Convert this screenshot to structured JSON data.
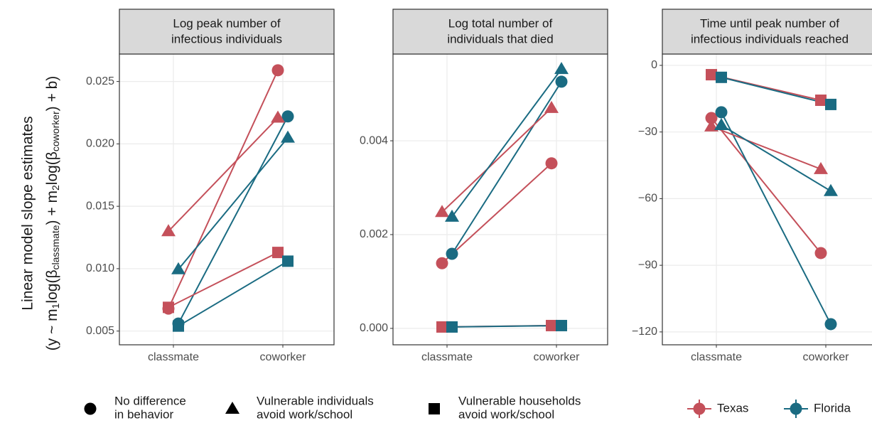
{
  "chart_data": [
    {
      "type": "line",
      "title": [
        "Log peak number of",
        "infectious individuals"
      ],
      "categories": [
        "classmate",
        "coworker"
      ],
      "ylim": [
        0.0039,
        0.0272
      ],
      "yticks": [
        0.005,
        {
          "value": 0.01,
          "label": "0.010"
        },
        0.015,
        {
          "value": 0.02,
          "label": "0.020"
        },
        0.025
      ],
      "grid": true,
      "series": [
        {
          "name": "Texas",
          "shape": "circle",
          "color": "#c4505a",
          "values": [
            0.0068,
            0.0259
          ]
        },
        {
          "name": "Florida",
          "shape": "circle",
          "color": "#1a6b82",
          "values": [
            0.0056,
            0.0222
          ]
        },
        {
          "name": "Texas",
          "shape": "triangle",
          "color": "#c4505a",
          "values": [
            0.013,
            0.0221
          ]
        },
        {
          "name": "Florida",
          "shape": "triangle",
          "color": "#1a6b82",
          "values": [
            0.00995,
            0.0205
          ]
        },
        {
          "name": "Texas",
          "shape": "square",
          "color": "#c4505a",
          "values": [
            0.0069,
            0.0113
          ]
        },
        {
          "name": "Florida",
          "shape": "square",
          "color": "#1a6b82",
          "values": [
            0.0054,
            0.0106
          ]
        }
      ]
    },
    {
      "type": "line",
      "title": [
        "Log total number of",
        "individuals that died"
      ],
      "categories": [
        "classmate",
        "coworker"
      ],
      "ylim": [
        -0.00035,
        0.00585
      ],
      "yticks": [
        {
          "value": 0,
          "label": "0.000"
        },
        0.002,
        0.004
      ],
      "grid": true,
      "series": [
        {
          "name": "Texas",
          "shape": "circle",
          "color": "#c4505a",
          "values": [
            0.00139,
            0.00352
          ]
        },
        {
          "name": "Florida",
          "shape": "circle",
          "color": "#1a6b82",
          "values": [
            0.00159,
            0.00526
          ]
        },
        {
          "name": "Texas",
          "shape": "triangle",
          "color": "#c4505a",
          "values": [
            0.00248,
            0.0047
          ]
        },
        {
          "name": "Florida",
          "shape": "triangle",
          "color": "#1a6b82",
          "values": [
            0.00238,
            0.00553
          ]
        },
        {
          "name": "Texas",
          "shape": "square",
          "color": "#c4505a",
          "values": [
            3e-05,
            6e-05
          ]
        },
        {
          "name": "Florida",
          "shape": "square",
          "color": "#1a6b82",
          "values": [
            3e-05,
            6e-05
          ]
        }
      ]
    },
    {
      "type": "line",
      "title": [
        "Time until peak number of",
        "infectious individuals reached"
      ],
      "categories": [
        "classmate",
        "coworker"
      ],
      "ylim": [
        -125.8,
        5.1
      ],
      "yticks": [
        0,
        {
          "value": -30,
          "label": "−30"
        },
        {
          "value": -60,
          "label": "−60"
        },
        {
          "value": -90,
          "label": "−90"
        },
        {
          "value": -120,
          "label": "−120"
        }
      ],
      "grid": true,
      "series": [
        {
          "name": "Texas",
          "shape": "circle",
          "color": "#c4505a",
          "values": [
            -23.7,
            -84.5
          ]
        },
        {
          "name": "Florida",
          "shape": "circle",
          "color": "#1a6b82",
          "values": [
            -21.1,
            -116.5
          ]
        },
        {
          "name": "Texas",
          "shape": "triangle",
          "color": "#c4505a",
          "values": [
            -27.5,
            -46.7
          ]
        },
        {
          "name": "Florida",
          "shape": "triangle",
          "color": "#1a6b82",
          "values": [
            -26.9,
            -56.6
          ]
        },
        {
          "name": "Texas",
          "shape": "square",
          "color": "#c4505a",
          "values": [
            -4.2,
            -15.7
          ]
        },
        {
          "name": "Florida",
          "shape": "square",
          "color": "#1a6b82",
          "values": [
            -5.4,
            -17.6
          ]
        }
      ]
    }
  ],
  "y_label": "Linear model slope estimates",
  "y_label_2": [
    "(y ~ m",
    "1",
    "log(β",
    "classmate",
    ") + m",
    "2",
    "log(β",
    "coworker",
    ") + b)"
  ],
  "shape_legend": [
    {
      "shape": "circle",
      "label": [
        "No difference",
        "in behavior"
      ]
    },
    {
      "shape": "triangle",
      "label": [
        "Vulnerable individuals",
        "avoid work/school"
      ]
    },
    {
      "shape": "square",
      "label": [
        "Vulnerable households",
        "avoid work/school"
      ]
    }
  ]
}
